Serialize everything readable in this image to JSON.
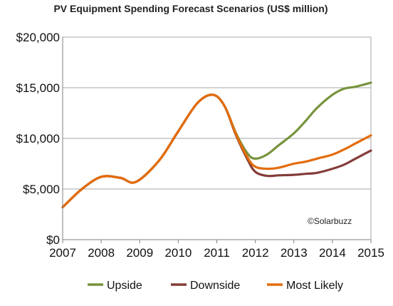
{
  "chart_data": {
    "type": "line",
    "title": "PV Equipment Spending Forecast Scenarios (US$ million)",
    "watermark": "©Solarbuzz",
    "xlabel": "",
    "ylabel": "",
    "x_tick_labels": [
      "2007",
      "2008",
      "2009",
      "2010",
      "2011",
      "2012",
      "2013",
      "2014",
      "2015"
    ],
    "y_tick_labels": [
      "$0",
      "$5,000",
      "$10,000",
      "$15,000",
      "$20,000"
    ],
    "xlim": [
      2007,
      2015
    ],
    "ylim": [
      0,
      20000
    ],
    "grid": true,
    "legend_position": "bottom",
    "series": [
      {
        "name": "Upside",
        "color": "#77933c",
        "x": [
          2007,
          2007.5,
          2008,
          2008.5,
          2008.9,
          2009.5,
          2010,
          2010.5,
          2010.9,
          2011.2,
          2011.5,
          2011.8,
          2012,
          2012.3,
          2012.6,
          2013,
          2013.3,
          2013.6,
          2014,
          2014.3,
          2014.6,
          2015
        ],
        "y": [
          3200,
          5000,
          6200,
          6100,
          5700,
          7800,
          10700,
          13500,
          14300,
          13200,
          10500,
          8500,
          8000,
          8400,
          9300,
          10500,
          11700,
          13000,
          14300,
          14900,
          15100,
          15500
        ]
      },
      {
        "name": "Downside",
        "color": "#843c39",
        "x": [
          2007,
          2007.5,
          2008,
          2008.5,
          2008.9,
          2009.5,
          2010,
          2010.5,
          2010.9,
          2011.2,
          2011.5,
          2011.8,
          2012,
          2012.3,
          2012.6,
          2013,
          2013.3,
          2013.6,
          2014,
          2014.3,
          2014.6,
          2015
        ],
        "y": [
          3200,
          5000,
          6200,
          6100,
          5700,
          7800,
          10700,
          13500,
          14300,
          13200,
          10300,
          7900,
          6700,
          6300,
          6350,
          6400,
          6500,
          6600,
          7000,
          7400,
          8000,
          8800
        ]
      },
      {
        "name": "Most Likely",
        "color": "#e46c0a",
        "x": [
          2007,
          2007.5,
          2008,
          2008.5,
          2008.9,
          2009.5,
          2010,
          2010.5,
          2010.9,
          2011.2,
          2011.5,
          2011.8,
          2012,
          2012.3,
          2012.6,
          2013,
          2013.3,
          2013.6,
          2014,
          2014.3,
          2014.6,
          2015
        ],
        "y": [
          3200,
          5000,
          6200,
          6100,
          5700,
          7800,
          10700,
          13500,
          14300,
          13200,
          10400,
          8100,
          7200,
          7000,
          7100,
          7500,
          7700,
          8000,
          8400,
          8900,
          9500,
          10300
        ]
      }
    ]
  }
}
